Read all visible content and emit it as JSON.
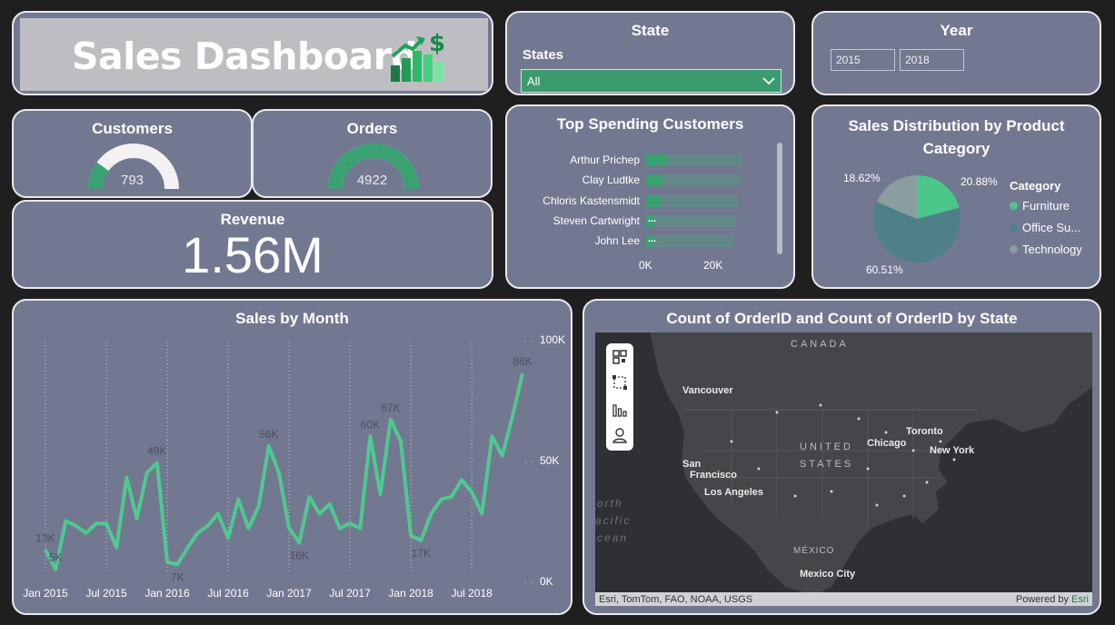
{
  "header": {
    "title": "Sales Dashboard"
  },
  "state_filter": {
    "title": "State",
    "label": "States",
    "selected": "All"
  },
  "year_filter": {
    "title": "Year",
    "from": "2015",
    "to": "2018"
  },
  "customers": {
    "title": "Customers",
    "value": "793",
    "fraction": 0.2
  },
  "orders": {
    "title": "Orders",
    "value": "4922",
    "fraction": 1.0
  },
  "revenue": {
    "title": "Revenue",
    "value": "1.56M"
  },
  "top_customers": {
    "title": "Top Spending Customers",
    "axis_ticks": [
      "0K",
      "20K"
    ]
  },
  "product_category": {
    "title": "Sales Distribution by Product Category",
    "legend_title": "Category",
    "labels": [
      "20.88%",
      "60.51%",
      "18.62%"
    ]
  },
  "sales_by_month": {
    "title": "Sales by Month",
    "y_ticks": [
      "100K",
      "50K",
      "0K"
    ],
    "x_ticks": [
      "Jan 2015",
      "Jul 2015",
      "Jan 2016",
      "Jul 2016",
      "Jan 2017",
      "Jul 2017",
      "Jan 2018",
      "Jul 2018"
    ],
    "point_labels": [
      "13K",
      "5K",
      "49K",
      "7K",
      "56K",
      "16K",
      "60K",
      "67K",
      "17K",
      "86K"
    ]
  },
  "map": {
    "title": "Count of OrderID and Count of OrderID by State",
    "attribution": "Esri, TomTom, FAO, NOAA, USGS",
    "powered_by": "Powered by",
    "powered_brand": "Esri",
    "labels": {
      "canada": "CANADA",
      "united": "UNITED",
      "states": "STATES",
      "mexico": "MÉXICO",
      "vancouver": "Vancouver",
      "toronto": "Toronto",
      "chicago": "Chicago",
      "new_york": "New York",
      "san": "San",
      "francisco": "Francisco",
      "los_angeles": "Los Angeles",
      "mexico_city": "Mexico City",
      "north": "orth",
      "pacific": "acific",
      "ocean": "cean"
    }
  },
  "chart_data": [
    {
      "type": "bar",
      "orientation": "horizontal",
      "title": "Top Spending Customers",
      "categories": [
        "Arthur Prichep",
        "Clay Ludtke",
        "Chloris Kastensmidt",
        "Steven Cartwright",
        "John Lee"
      ],
      "values": [
        3600,
        2800,
        2300,
        1300,
        1200
      ],
      "xlim": [
        0,
        30000
      ],
      "colors": {
        "bar": "#3aa173",
        "track": "#5e8e86"
      }
    },
    {
      "type": "pie",
      "title": "Sales Distribution by Product Category",
      "categories": [
        "Furniture",
        "Office Su...",
        "Technology"
      ],
      "values": [
        20.88,
        60.51,
        18.62
      ],
      "colors": [
        "#4cc78b",
        "#4f8088",
        "#8a9ea1"
      ],
      "legend": "right"
    },
    {
      "type": "line",
      "title": "Sales by Month",
      "ylim": [
        0,
        100000
      ],
      "x": [
        "2015-01",
        "2015-02",
        "2015-03",
        "2015-04",
        "2015-05",
        "2015-06",
        "2015-07",
        "2015-08",
        "2015-09",
        "2015-10",
        "2015-11",
        "2015-12",
        "2016-01",
        "2016-02",
        "2016-03",
        "2016-04",
        "2016-05",
        "2016-06",
        "2016-07",
        "2016-08",
        "2016-09",
        "2016-10",
        "2016-11",
        "2016-12",
        "2017-01",
        "2017-02",
        "2017-03",
        "2017-04",
        "2017-05",
        "2017-06",
        "2017-07",
        "2017-08",
        "2017-09",
        "2017-10",
        "2017-11",
        "2017-12",
        "2018-01",
        "2018-02",
        "2018-03",
        "2018-04",
        "2018-05",
        "2018-06",
        "2018-07",
        "2018-08",
        "2018-09",
        "2018-10",
        "2018-11",
        "2018-12"
      ],
      "values": [
        13000,
        5000,
        25000,
        23000,
        20000,
        24000,
        24000,
        14000,
        43000,
        26000,
        45000,
        49000,
        8000,
        7000,
        14000,
        20000,
        23000,
        28000,
        18000,
        34000,
        22000,
        31000,
        56000,
        45000,
        22000,
        16000,
        35000,
        28000,
        32000,
        22000,
        24000,
        22000,
        60000,
        36000,
        67000,
        58000,
        19000,
        17000,
        28000,
        34000,
        35000,
        42000,
        37000,
        28000,
        60000,
        52000,
        68000,
        86000
      ],
      "point_labels": {
        "2015-01": "13K",
        "2015-02": "5K",
        "2015-12": "49K",
        "2016-02": "7K",
        "2016-11": "56K",
        "2017-02": "16K",
        "2017-09": "60K",
        "2017-11": "67K",
        "2018-02": "17K",
        "2018-12": "86K"
      },
      "color": "#4ec990"
    }
  ]
}
